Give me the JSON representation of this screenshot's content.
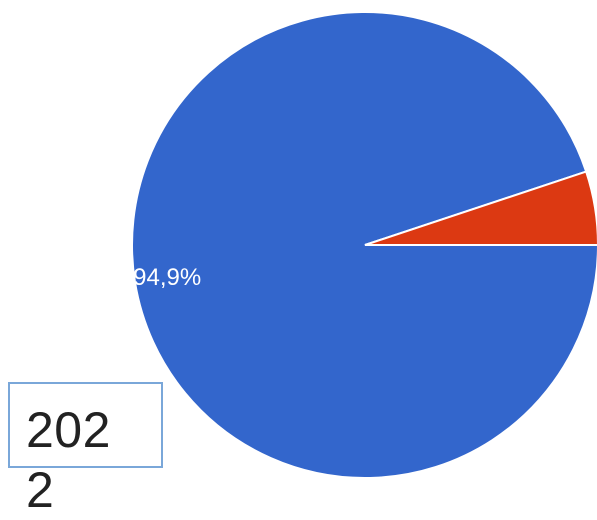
{
  "chart_data": {
    "type": "pie",
    "slices": [
      {
        "value": 94.9,
        "label": "94,9%",
        "color": "#3366cc"
      },
      {
        "value": 5.1,
        "label": "",
        "color": "#dc3912"
      }
    ]
  },
  "year_box": {
    "text": "2022"
  }
}
